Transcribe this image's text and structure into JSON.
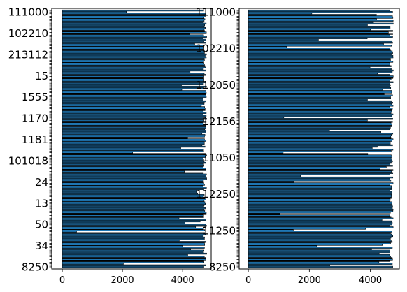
{
  "chart_data": [
    {
      "type": "bar",
      "orientation": "horizontal",
      "bar_color": "#1f77b4",
      "edge_color": "#000000",
      "xlim": [
        -350,
        4950
      ],
      "x_ticks": [
        0,
        2000,
        4000
      ],
      "x_tick_labels": [
        "0",
        "2000",
        "4000"
      ],
      "bar_count_approx": 176,
      "value_range": [
        150,
        4800
      ],
      "visible_y_tick_labels": [
        "111000",
        "102210",
        "213112",
        "15",
        "1555",
        "1170",
        "1181",
        "101018",
        "24",
        "13",
        "50",
        "34",
        "8250"
      ],
      "grid": false,
      "legend": "none"
    },
    {
      "type": "bar",
      "orientation": "horizontal",
      "bar_color": "#1f77b4",
      "edge_color": "#000000",
      "xlim": [
        -300,
        4950
      ],
      "x_ticks": [
        0,
        2000,
        4000
      ],
      "x_tick_labels": [
        "0",
        "2000",
        "4000"
      ],
      "bar_count_approx": 176,
      "value_range": [
        900,
        4750
      ],
      "visible_y_tick_labels": [
        "111000",
        "102210",
        "112050",
        "12156",
        "11050",
        "112250",
        "11250",
        "8250"
      ],
      "grid": false,
      "legend": "none"
    }
  ]
}
